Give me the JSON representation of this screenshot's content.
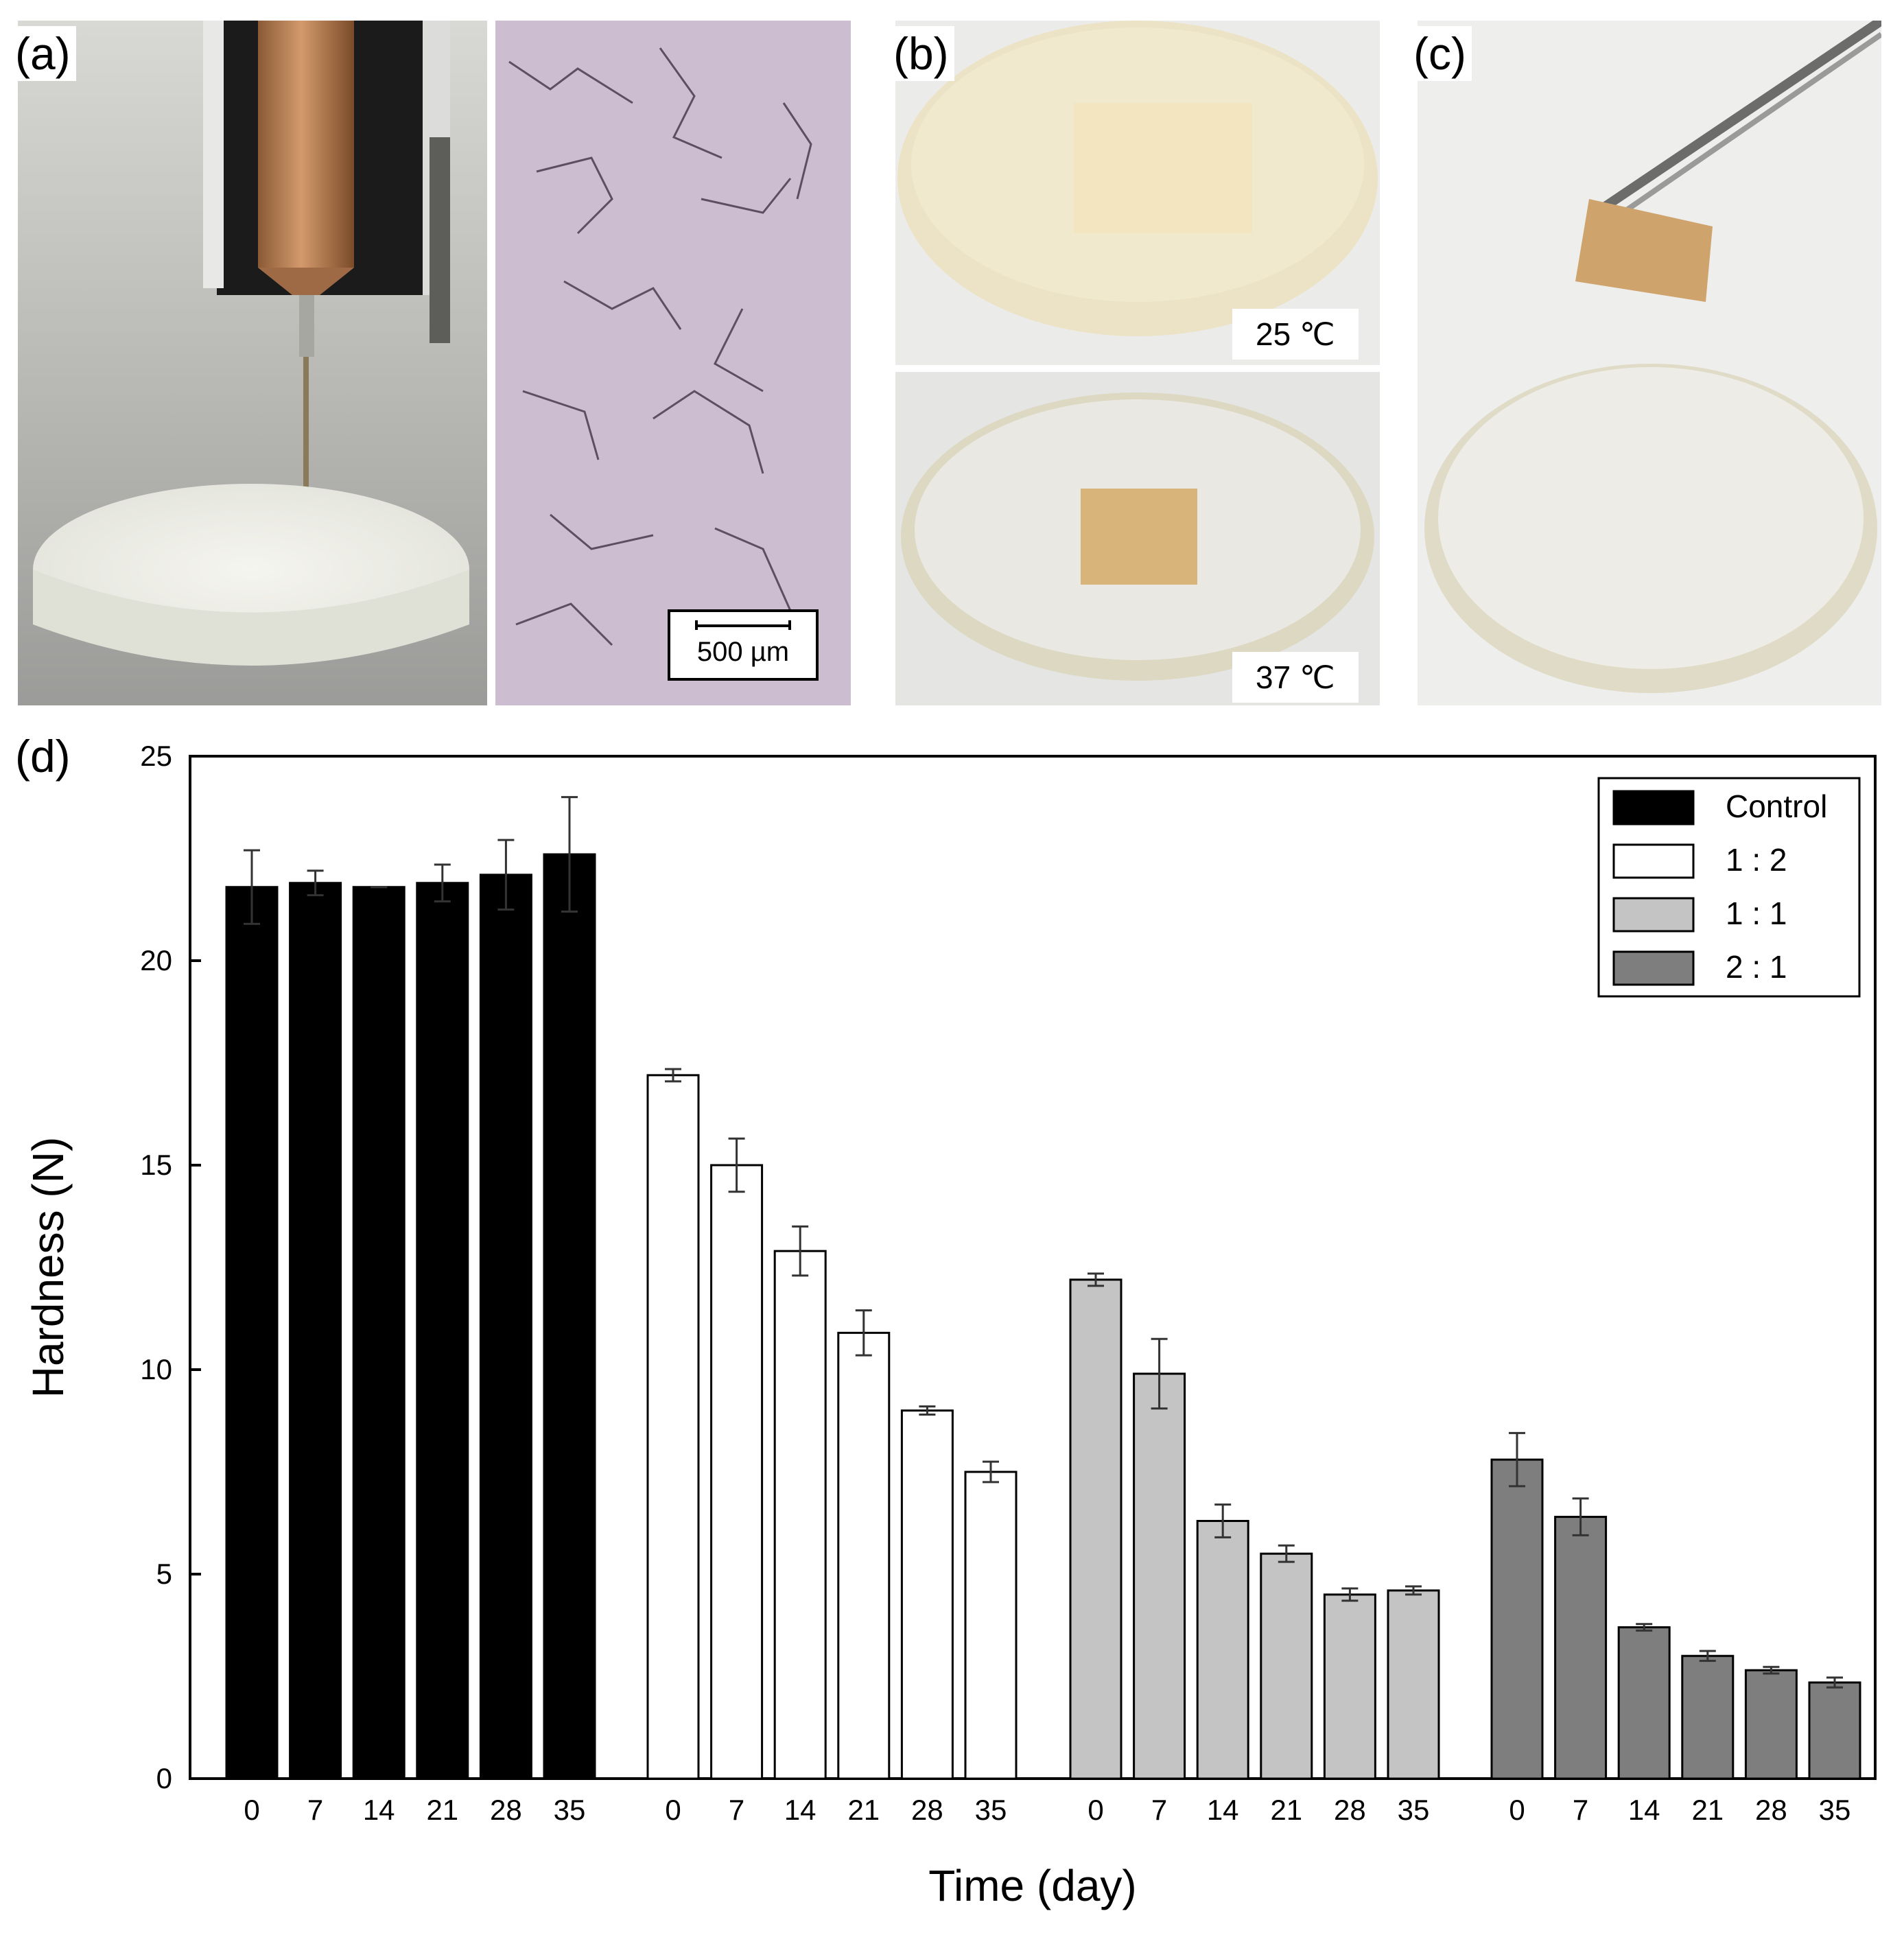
{
  "panels": {
    "a": {
      "label": "(a)",
      "scale_bar": "500 µm"
    },
    "b": {
      "label": "(b)",
      "temp_top": "25 ℃",
      "temp_bottom": "37 ℃"
    },
    "c": {
      "label": "(c)"
    },
    "d": {
      "label": "(d)"
    }
  },
  "colors": {
    "Control": "#000000",
    "1 : 2": "#ffffff",
    "1 : 1": "#c4c4c4",
    "2 : 1": "#7e7e7e"
  },
  "chart_data": {
    "type": "bar",
    "title": "",
    "xlabel": "Time (day)",
    "ylabel": "Hardness (N)",
    "ylim": [
      0,
      25
    ],
    "yticks": [
      0,
      5,
      10,
      15,
      20,
      25
    ],
    "categories": [
      "0",
      "7",
      "14",
      "21",
      "28",
      "35"
    ],
    "legend_position": "top-right",
    "series": [
      {
        "name": "Control",
        "values": [
          21.8,
          21.9,
          21.8,
          21.9,
          22.1,
          22.6
        ],
        "errors": [
          0.9,
          0.3,
          0.0,
          0.45,
          0.85,
          1.4
        ]
      },
      {
        "name": "1 : 2",
        "values": [
          17.2,
          15.0,
          12.9,
          10.9,
          9.0,
          7.5
        ],
        "errors": [
          0.15,
          0.65,
          0.6,
          0.55,
          0.1,
          0.25
        ]
      },
      {
        "name": "1 : 1",
        "values": [
          12.2,
          9.9,
          6.3,
          5.5,
          4.5,
          4.6
        ],
        "errors": [
          0.15,
          0.85,
          0.4,
          0.2,
          0.15,
          0.1
        ]
      },
      {
        "name": "2 : 1",
        "values": [
          7.8,
          6.4,
          3.7,
          3.0,
          2.65,
          2.35
        ],
        "errors": [
          0.65,
          0.45,
          0.08,
          0.12,
          0.08,
          0.12
        ]
      }
    ]
  }
}
